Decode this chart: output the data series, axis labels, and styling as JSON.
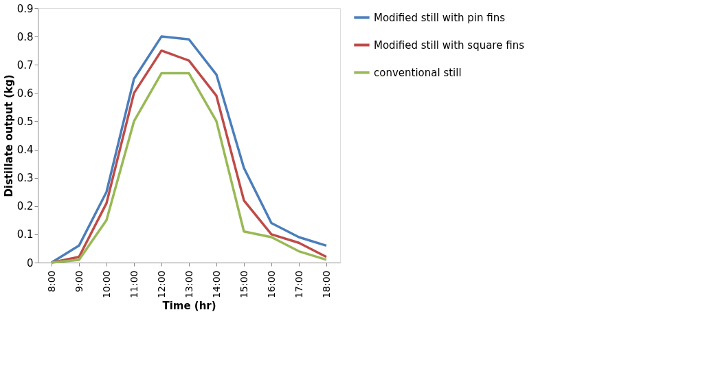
{
  "chart_data": {
    "type": "line",
    "xlabel": "Time (hr)",
    "ylabel": "Distillate output (kg)",
    "categories": [
      "8:00",
      "9:00",
      "10:00",
      "11:00",
      "12:00",
      "13:00",
      "14:00",
      "15:00",
      "16:00",
      "17:00",
      "18:00"
    ],
    "series": [
      {
        "name": "Modified still with pin fins",
        "color": "#4a7ebb",
        "values": [
          0,
          0.06,
          0.25,
          0.65,
          0.8,
          0.79,
          0.665,
          0.335,
          0.14,
          0.09,
          0.06
        ]
      },
      {
        "name": "Modified still with square fins",
        "color": "#be4b48",
        "values": [
          0,
          0.02,
          0.21,
          0.6,
          0.75,
          0.715,
          0.59,
          0.22,
          0.1,
          0.07,
          0.02
        ]
      },
      {
        "name": "conventional still",
        "color": "#98b954",
        "values": [
          0,
          0.01,
          0.15,
          0.5,
          0.67,
          0.67,
          0.5,
          0.11,
          0.09,
          0.04,
          0.01
        ]
      }
    ],
    "ylim": [
      0,
      0.9
    ],
    "yticks": [
      0,
      0.1,
      0.2,
      0.3,
      0.4,
      0.5,
      0.6,
      0.7,
      0.8,
      0.9
    ],
    "grid": false,
    "legend": "right",
    "marker": "none",
    "line_style": "solid"
  }
}
